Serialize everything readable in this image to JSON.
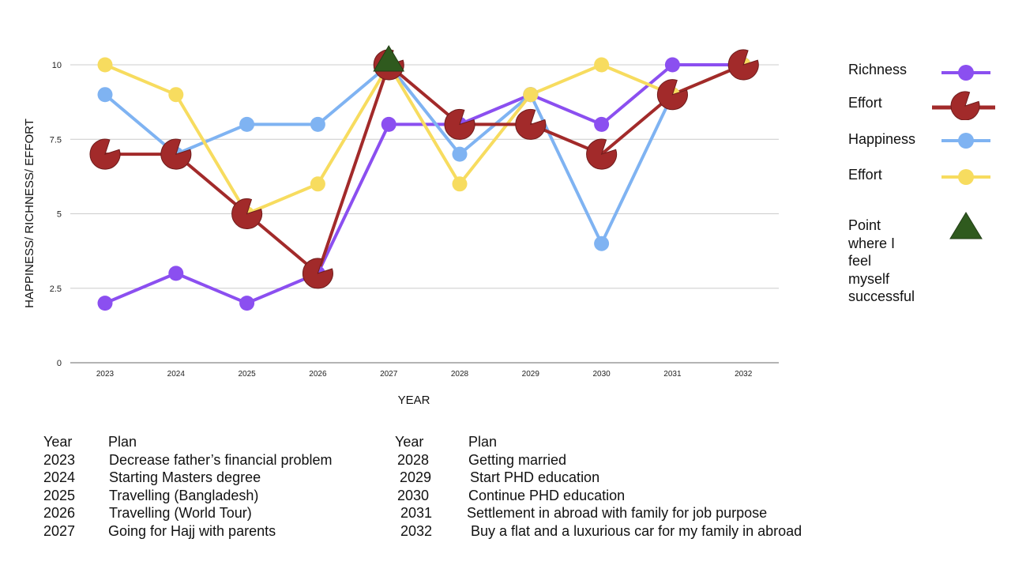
{
  "chart_data": {
    "type": "line",
    "categories": [
      "2023",
      "2024",
      "2025",
      "2026",
      "2027",
      "2028",
      "2029",
      "2030",
      "2031",
      "2032"
    ],
    "ylabel": "HAPPINESS/ RICHNESS/ EFFORT",
    "xlabel": "YEAR",
    "ylim": [
      0,
      10
    ],
    "yticks": [
      "0",
      "2.5",
      "5",
      "7.5",
      "10"
    ],
    "grid": "horizontal",
    "legend_position": "right",
    "series": [
      {
        "name": "Richness",
        "color": "#8b4ff0",
        "marker": "circle",
        "values": [
          2,
          3,
          2,
          3,
          8,
          8,
          9,
          8,
          10,
          10
        ]
      },
      {
        "name": "Happiness",
        "color": "#7fb3f2",
        "marker": "circle",
        "values": [
          9,
          7,
          8,
          8,
          10,
          7,
          9,
          4,
          9,
          10
        ]
      },
      {
        "name": "Effort",
        "color": "#f7dc5f",
        "marker": "circle",
        "values": [
          10,
          9,
          5,
          6,
          10,
          6,
          9,
          10,
          9,
          10
        ]
      },
      {
        "name": "Effort",
        "color": "#a22a2a",
        "marker": "pacman",
        "values": [
          7,
          7,
          5,
          3,
          10,
          8,
          8,
          7,
          9,
          10
        ]
      }
    ],
    "annotation": {
      "label": "Point where I feel myself successful",
      "category": "2027",
      "value": 10,
      "color": "#2f5a1e",
      "marker": "triangle"
    }
  },
  "legend": {
    "items": [
      {
        "label": "Richness",
        "color": "#8b4ff0",
        "marker": "circle"
      },
      {
        "label": "Effort",
        "color": "#a22a2a",
        "marker": "pacman"
      },
      {
        "label": "Happiness",
        "color": "#7fb3f2",
        "marker": "circle"
      },
      {
        "label": "Effort",
        "color": "#f7dc5f",
        "marker": "circle"
      }
    ],
    "success_lines": [
      "Point",
      "where I",
      "feel",
      "myself",
      "successful"
    ]
  },
  "plans": {
    "left": {
      "header_year": "Year",
      "header_plan": "Plan",
      "rows": [
        {
          "year": "2023",
          "plan": "Decrease father’s financial problem"
        },
        {
          "year": "2024",
          "plan": "Starting Masters degree"
        },
        {
          "year": "2025",
          "plan": "Travelling (Bangladesh)"
        },
        {
          "year": "2026",
          "plan": "Travelling (World Tour)"
        },
        {
          "year": "2027",
          "plan": "Going for Hajj with parents"
        }
      ]
    },
    "right": {
      "header_year": "Year",
      "header_plan": "Plan",
      "rows": [
        {
          "year": "2028",
          "plan": "Getting married"
        },
        {
          "year": "2029",
          "plan": "Start PHD education"
        },
        {
          "year": "2030",
          "plan": "Continue PHD education"
        },
        {
          "year": "2031",
          "plan": "Settlement in abroad with family for job purpose"
        },
        {
          "year": "2032",
          "plan": "Buy a flat and a luxurious car for my family in abroad"
        }
      ]
    }
  }
}
